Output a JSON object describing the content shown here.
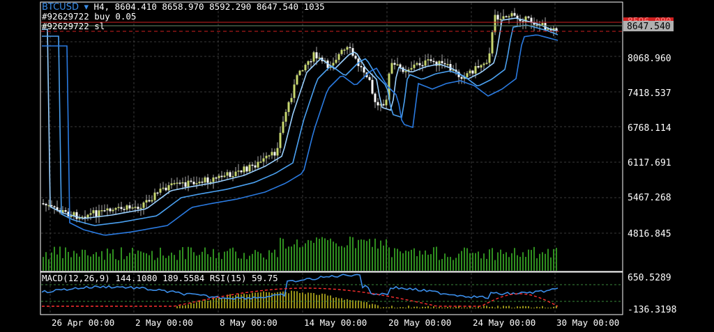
{
  "header": {
    "symbol": "BTCUSD",
    "symbol_arrow": "▾",
    "ohlc": "H4, 8604.410 8658.970 8592.290 8647.540 1035",
    "order_buy": "#92629722 buy 0.05",
    "order_sl": "#92629722 sl"
  },
  "price_axis": {
    "labels": [
      "8068.960",
      "7418.537",
      "6768.114",
      "6117.691",
      "5467.268",
      "4816.845"
    ],
    "current_price": "8647.540",
    "hidden_red_tag": "8596.000"
  },
  "time_axis": {
    "labels": [
      "26 Apr 00:00",
      "2 May 00:00",
      "8 May 00:00",
      "14 May 00:00",
      "20 May 00:00",
      "24 May 00:00",
      "30 May 00:00"
    ]
  },
  "indicator": {
    "title": "MACD(12,26,9) 144.1080 189.5584 RSI(15) 59.75",
    "scale_top": "650.5289",
    "scale_bottom": "-136.3198"
  },
  "colors": {
    "bull_candle": "#c8d870",
    "bear_candle": "#ffffff",
    "wick": "#aaaaaa",
    "ma_fast": "#9ad0ff",
    "ma_mid": "#4aa0f0",
    "ma_slow": "#2a7ae0",
    "volume": "#2f8f1f",
    "macd_hist": "#c8c020",
    "signal": "#ff3030",
    "rsi": "#3b8eea",
    "level_red": "#d02020",
    "level_green": "#3a8a3a",
    "grid": "#3a3a3a"
  }
}
